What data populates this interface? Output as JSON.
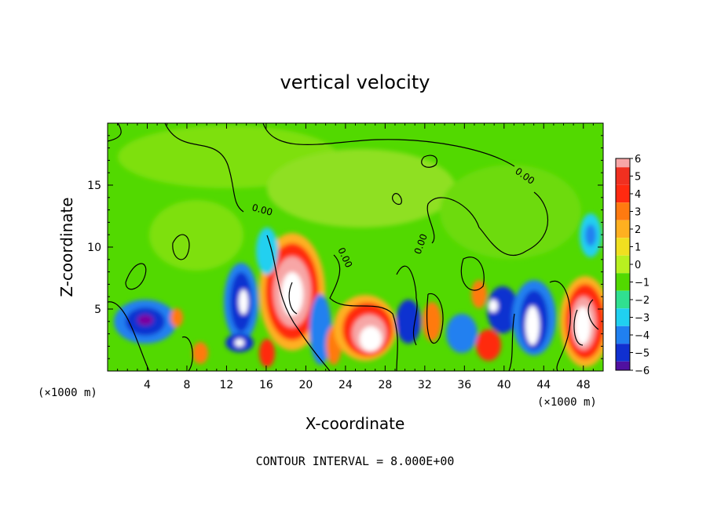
{
  "chart_data": {
    "type": "heatmap",
    "title": "vertical velocity",
    "xlabel": "X-coordinate",
    "ylabel": "Z-coordinate",
    "x_unit_left": "(×1000 m)",
    "x_unit_right": "(×1000 m)",
    "footer": "CONTOUR INTERVAL = 8.000E+00",
    "xlim": [
      0,
      50
    ],
    "ylim": [
      0,
      20
    ],
    "x_ticks": [
      4,
      8,
      12,
      16,
      20,
      24,
      28,
      32,
      36,
      40,
      44,
      48
    ],
    "y_ticks": [
      5,
      10,
      15
    ],
    "contour_label": "0.00",
    "colorbar": {
      "levels": [
        6,
        5,
        4,
        3,
        2,
        1,
        0,
        -1,
        -2,
        -3,
        -4,
        -5,
        -6
      ],
      "colors": [
        "#f7a6a6",
        "#f03020",
        "#ff2a10",
        "#ff7a10",
        "#ffb020",
        "#f0e020",
        "#b8f020",
        "#52d900",
        "#30e090",
        "#20d0f0",
        "#2080f0",
        "#1030d0",
        "#5010a0",
        "#7a00a0"
      ]
    },
    "features": [
      {
        "x": 4.5,
        "z": 4.2,
        "value": -5.5
      },
      {
        "x": 7.5,
        "z": 4.0,
        "value": 2.5
      },
      {
        "x": 9.5,
        "z": 1.5,
        "value": 2.0
      },
      {
        "x": 13.5,
        "z": 5.5,
        "value": -6.5
      },
      {
        "x": 13.2,
        "z": 2.3,
        "value": -6.5
      },
      {
        "x": 16.2,
        "z": 1.8,
        "value": 4.5
      },
      {
        "x": 18.5,
        "z": 6.0,
        "value": 8.0
      },
      {
        "x": 26.5,
        "z": 2.7,
        "value": 8.0
      },
      {
        "x": 30.8,
        "z": 4.0,
        "value": -4.0
      },
      {
        "x": 33.2,
        "z": 3.3,
        "value": 4.0
      },
      {
        "x": 35.5,
        "z": 2.8,
        "value": -4.0
      },
      {
        "x": 38.0,
        "z": 2.0,
        "value": 4.0
      },
      {
        "x": 39.0,
        "z": 5.0,
        "value": -5.0
      },
      {
        "x": 42.8,
        "z": 4.0,
        "value": -6.5
      },
      {
        "x": 47.8,
        "z": 3.8,
        "value": 8.0
      },
      {
        "x": 48.5,
        "z": 10.5,
        "value": -2.5
      }
    ]
  }
}
